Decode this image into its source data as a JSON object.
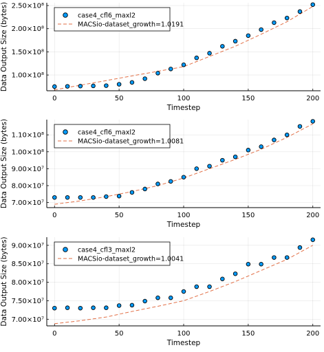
{
  "chart_data": [
    {
      "type": "scatter",
      "xlabel": "Timestep",
      "ylabel": "Data Output Size (bytes)",
      "xlim": [
        -6,
        206
      ],
      "ylim": [
        66000000,
        256000000
      ],
      "x_ticks": [
        0,
        50,
        100,
        150,
        200
      ],
      "y_ticks": [
        {
          "value": 100000000,
          "label": "1.00×10⁸"
        },
        {
          "value": 150000000,
          "label": "1.50×10⁸"
        },
        {
          "value": 200000000,
          "label": "2.00×10⁸"
        },
        {
          "value": 250000000,
          "label": "2.50×10⁸"
        }
      ],
      "grid": true,
      "legend_position": "top-left",
      "series": [
        {
          "name": "case4_cfl6_maxl2",
          "kind": "scatter",
          "color": "#009AFA",
          "x": [
            0,
            10,
            20,
            30,
            40,
            50,
            60,
            70,
            80,
            90,
            100,
            110,
            120,
            130,
            140,
            150,
            160,
            170,
            180,
            190,
            200
          ],
          "y": [
            75000000,
            75500000,
            76000000,
            76500000,
            77000000,
            80000000,
            84000000,
            92000000,
            104000000,
            113000000,
            122000000,
            137000000,
            147000000,
            162000000,
            173000000,
            185000000,
            198000000,
            213000000,
            223000000,
            237000000,
            252000000
          ]
        },
        {
          "name": "MACSio-dataset_growth=1.0191",
          "kind": "line",
          "color": "#E26F46",
          "x": [
            0,
            20,
            40,
            60,
            80,
            100,
            120,
            140,
            160,
            180,
            200
          ],
          "y": [
            68000000,
            78000000,
            88000000,
            98000000,
            108000000,
            118000000,
            140000000,
            162000000,
            188000000,
            215000000,
            248000000
          ]
        }
      ]
    },
    {
      "type": "scatter",
      "xlabel": "Timestep",
      "ylabel": "Data Output Size (bytes)",
      "xlim": [
        -6,
        206
      ],
      "ylim": [
        67000000,
        119000000
      ],
      "x_ticks": [
        0,
        50,
        100,
        150,
        200
      ],
      "y_ticks": [
        {
          "value": 70000000,
          "label": "7.00×10⁷"
        },
        {
          "value": 80000000,
          "label": "8.00×10⁷"
        },
        {
          "value": 90000000,
          "label": "9.00×10⁷"
        },
        {
          "value": 100000000,
          "label": "1.00×10⁸"
        },
        {
          "value": 110000000,
          "label": "1.10×10⁸"
        }
      ],
      "grid": true,
      "legend_position": "top-left",
      "series": [
        {
          "name": "case4_cfl6_maxl2",
          "kind": "scatter",
          "color": "#009AFA",
          "x": [
            0,
            10,
            20,
            30,
            40,
            50,
            60,
            70,
            80,
            90,
            100,
            110,
            120,
            130,
            140,
            150,
            160,
            170,
            180,
            190,
            200
          ],
          "y": [
            73000000,
            73000000,
            73000000,
            73000000,
            73500000,
            73800000,
            76000000,
            78000000,
            81000000,
            82500000,
            85000000,
            90000000,
            91500000,
            95000000,
            97000000,
            101000000,
            103000000,
            107000000,
            110000000,
            115000000,
            118000000
          ]
        },
        {
          "name": "MACSio-dataset_growth=1.0081",
          "kind": "line",
          "color": "#E26F46",
          "x": [
            0,
            20,
            40,
            60,
            80,
            100,
            120,
            140,
            160,
            180,
            200
          ],
          "y": [
            69000000,
            71000000,
            73500000,
            76500000,
            80000000,
            84500000,
            90000000,
            95500000,
            101500000,
            108500000,
            116500000
          ]
        }
      ]
    },
    {
      "type": "scatter",
      "xlabel": "Timestep",
      "ylabel": "Data Output Size (bytes)",
      "xlim": [
        -6,
        206
      ],
      "ylim": [
        68200000,
        92200000
      ],
      "x_ticks": [
        0,
        50,
        100,
        150,
        200
      ],
      "y_ticks": [
        {
          "value": 70000000,
          "label": "7.00×10⁷"
        },
        {
          "value": 75000000,
          "label": "7.50×10⁷"
        },
        {
          "value": 80000000,
          "label": "8.00×10⁷"
        },
        {
          "value": 85000000,
          "label": "8.50×10⁷"
        },
        {
          "value": 90000000,
          "label": "9.00×10⁷"
        }
      ],
      "grid": true,
      "legend_position": "top-left",
      "series": [
        {
          "name": "case4_cfl3_maxl2",
          "kind": "scatter",
          "color": "#009AFA",
          "x": [
            0,
            10,
            20,
            30,
            40,
            50,
            60,
            70,
            80,
            90,
            100,
            110,
            120,
            130,
            140,
            150,
            160,
            170,
            180,
            190,
            200
          ],
          "y": [
            73000000,
            73100000,
            73000000,
            73100000,
            73100000,
            73700000,
            73800000,
            74900000,
            75800000,
            75800000,
            77500000,
            78800000,
            78800000,
            80900000,
            82300000,
            84900000,
            84900000,
            86700000,
            86700000,
            89400000,
            91500000
          ]
        },
        {
          "name": "MACSio-dataset_growth=1.0041",
          "kind": "line",
          "color": "#E26F46",
          "x": [
            0,
            20,
            40,
            60,
            80,
            100,
            120,
            140,
            160,
            180,
            200
          ],
          "y": [
            68800000,
            69600000,
            70600000,
            72100000,
            73500000,
            75000000,
            77500000,
            80200000,
            83200000,
            86200000,
            90000000
          ]
        }
      ]
    }
  ]
}
